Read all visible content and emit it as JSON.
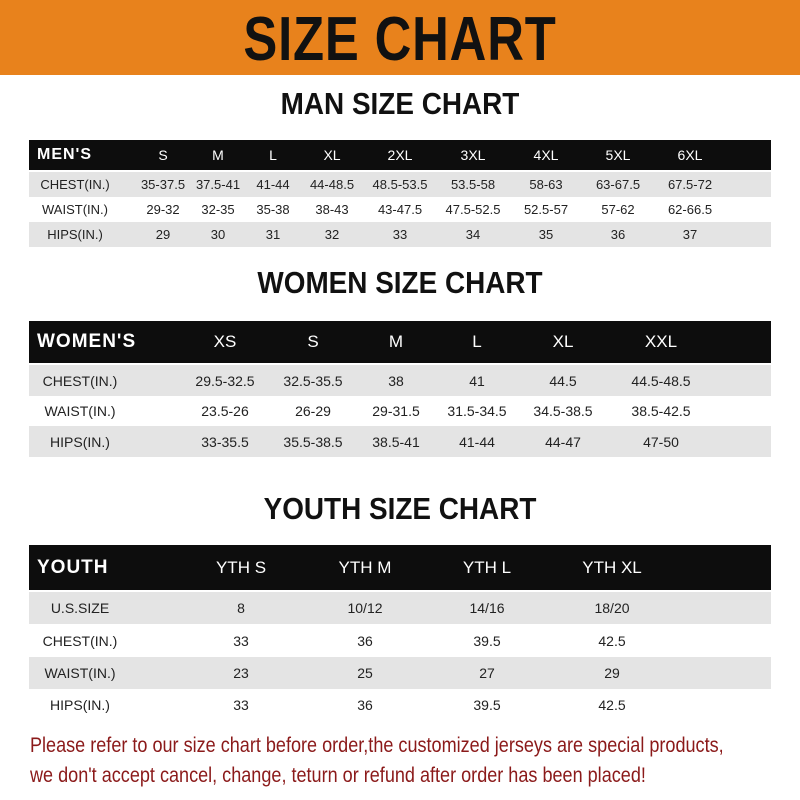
{
  "banner": {
    "title": "SIZE CHART",
    "color": "#e8821c"
  },
  "men": {
    "title": "MAN SIZE CHART",
    "columns": [
      "MEN'S",
      "S",
      "M",
      "L",
      "XL",
      "2XL",
      "3XL",
      "4XL",
      "5XL",
      "6XL"
    ],
    "rows": [
      [
        "CHEST(IN.)",
        "35-37.5",
        "37.5-41",
        "41-44",
        "44-48.5",
        "48.5-53.5",
        "53.5-58",
        "58-63",
        "63-67.5",
        "67.5-72"
      ],
      [
        "WAIST(IN.)",
        "29-32",
        "32-35",
        "35-38",
        "38-43",
        "43-47.5",
        "47.5-52.5",
        "52.5-57",
        "57-62",
        "62-66.5"
      ],
      [
        "HIPS(IN.)",
        "29",
        "30",
        "31",
        "32",
        "33",
        "34",
        "35",
        "36",
        "37"
      ]
    ]
  },
  "women": {
    "title": "WOMEN SIZE CHART",
    "columns": [
      "WOMEN'S",
      "XS",
      "S",
      "M",
      "L",
      "XL",
      "XXL"
    ],
    "rows": [
      [
        "CHEST(IN.)",
        "29.5-32.5",
        "32.5-35.5",
        "38",
        "41",
        "44.5",
        "44.5-48.5"
      ],
      [
        "WAIST(IN.)",
        "23.5-26",
        "26-29",
        "29-31.5",
        "31.5-34.5",
        "34.5-38.5",
        "38.5-42.5"
      ],
      [
        "HIPS(IN.)",
        "33-35.5",
        "35.5-38.5",
        "38.5-41",
        "41-44",
        "44-47",
        "47-50"
      ]
    ]
  },
  "youth": {
    "title": "YOUTH SIZE CHART",
    "columns": [
      "YOUTH",
      "YTH S",
      "YTH M",
      "YTH L",
      "YTH XL"
    ],
    "rows": [
      [
        "U.S.SIZE",
        "8",
        "10/12",
        "14/16",
        "18/20"
      ],
      [
        "CHEST(IN.)",
        "33",
        "36",
        "39.5",
        "42.5"
      ],
      [
        "WAIST(IN.)",
        "23",
        "25",
        "27",
        "29"
      ],
      [
        "HIPS(IN.)",
        "33",
        "36",
        "39.5",
        "42.5"
      ]
    ]
  },
  "notice": {
    "line1": "Please refer to our size chart before order,the customized jerseys are special products,",
    "line2": "we don't accept cancel, change, teturn or refund after order has been placed!",
    "color": "#8b1a1a"
  }
}
